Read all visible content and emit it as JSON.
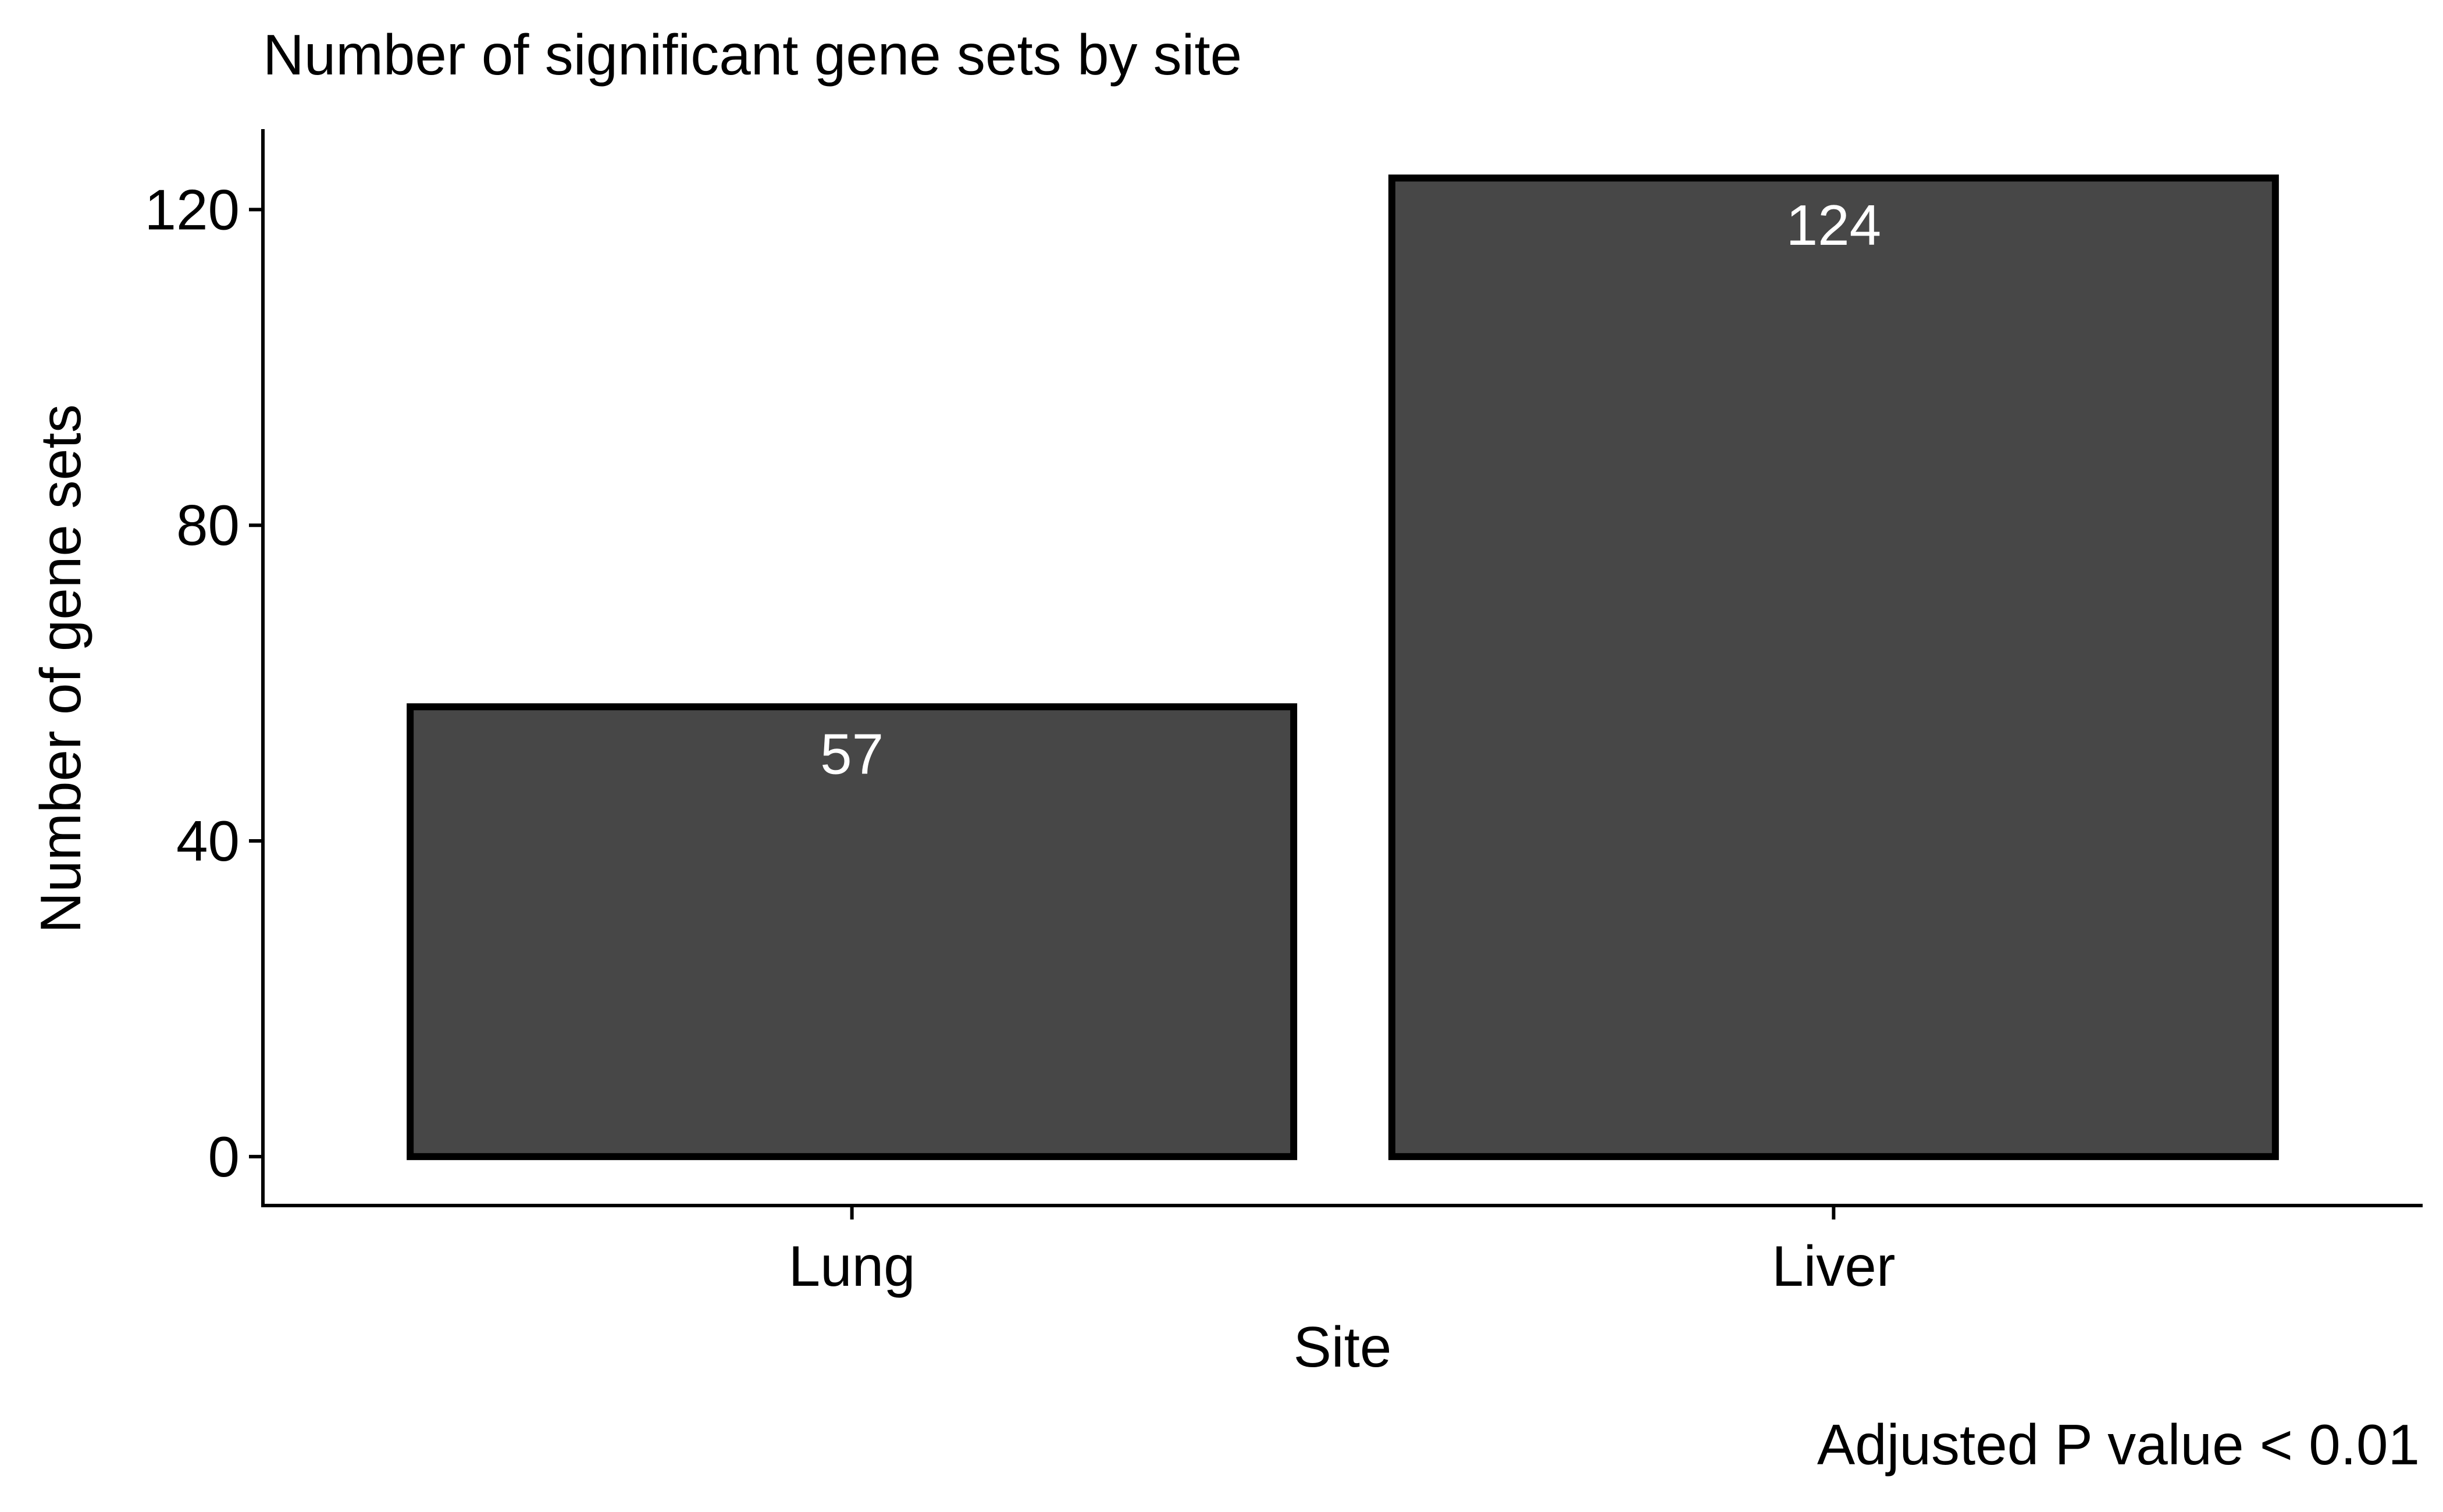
{
  "chart_data": {
    "type": "bar",
    "title": "Number of significant gene sets by site",
    "xlabel": "Site",
    "ylabel": "Number of gene sets",
    "caption": "Adjusted P value < 0.01",
    "categories": [
      "Lung",
      "Liver"
    ],
    "values": [
      57,
      124
    ],
    "data_labels": [
      "57",
      "124"
    ],
    "ylim": [
      -6.2,
      130.2
    ],
    "yticks": [
      0,
      40,
      80,
      120
    ],
    "ytick_labels": [
      "0",
      "40",
      "80",
      "120"
    ],
    "grid": false,
    "legend": "none",
    "colors": {
      "bar_fill": "#474747",
      "bar_outline": "#000000",
      "data_label": "#ffffff",
      "axis": "#000000",
      "text": "#000000",
      "background": "#ffffff"
    }
  }
}
